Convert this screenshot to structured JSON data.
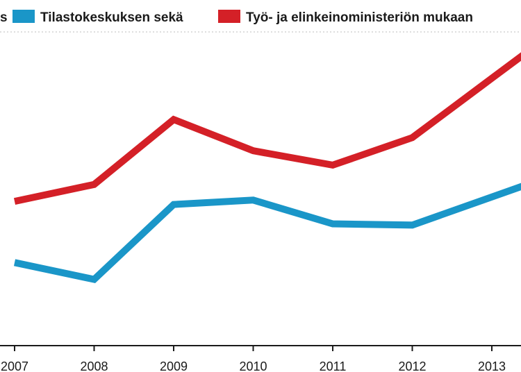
{
  "legend": {
    "partial_label": "s",
    "items": [
      {
        "label": "Tilastokeskuksen sekä",
        "color": "#1a96c8"
      },
      {
        "label": "Työ- ja elinkeinoministeriön mukaan",
        "color": "#d42027"
      }
    ]
  },
  "chart_data": {
    "type": "line",
    "x": [
      "2007",
      "2008",
      "2009",
      "2010",
      "2011",
      "2012",
      "2013"
    ],
    "series": [
      {
        "name": "Tilastokeskuksen sekä",
        "color": "#1a96c8",
        "values": [
          1.33,
          1.06,
          2.26,
          2.33,
          1.95,
          1.93,
          2.38
        ]
      },
      {
        "name": "Työ- ja elinkeinoministeriön mukaan",
        "color": "#d42027",
        "values": [
          2.31,
          2.58,
          3.62,
          3.12,
          2.89,
          3.33,
          4.28
        ]
      }
    ],
    "ylim": [
      0,
      5
    ],
    "grid": false,
    "legend_position": "top"
  }
}
